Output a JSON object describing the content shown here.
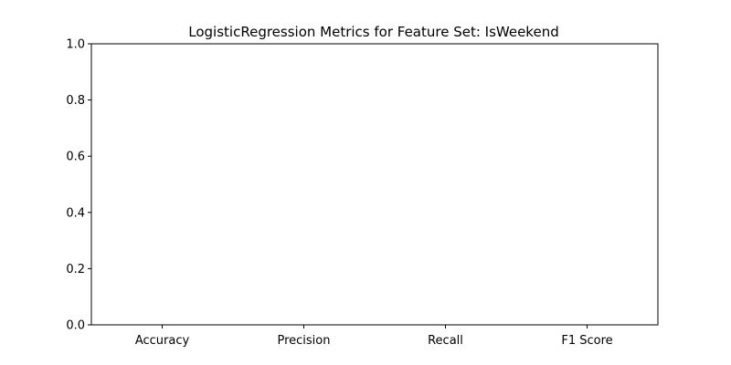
{
  "chart_data": {
    "type": "bar",
    "title": "LogisticRegression Metrics for Feature Set: IsWeekend",
    "categories": [
      "Accuracy",
      "Precision",
      "Recall",
      "F1 Score"
    ],
    "values": [
      0,
      0,
      0,
      0
    ],
    "xlabel": "",
    "ylabel": "",
    "ylim": [
      0,
      1
    ],
    "yticks": [
      0.0,
      0.2,
      0.4,
      0.6,
      0.8,
      1.0
    ],
    "ytick_labels": [
      "0.0",
      "0.2",
      "0.4",
      "0.6",
      "0.8",
      "1.0"
    ],
    "grid": false,
    "legend": "none",
    "colors": {
      "axis": "#000000",
      "background": "#ffffff"
    }
  }
}
